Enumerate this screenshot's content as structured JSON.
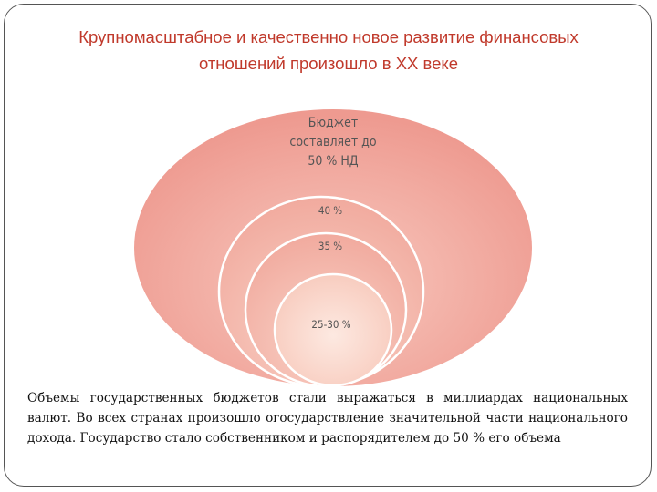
{
  "title": {
    "line1": "Крупномасштабное и качественно новое развитие финансовых",
    "line2": "отношений произошло в XX веке"
  },
  "diagram": {
    "outer": {
      "line1": "Бюджет",
      "line2": "составляет до",
      "line3": "50 % НД"
    },
    "level2": "40 %",
    "level3": "35 %",
    "level4": "25-30 %"
  },
  "body": "Объемы государственных бюджетов стали выражаться в миллиардах национальных валют. Во всех странах произошло огосударствление значительной части национального дохода. Государство стало собственником и распорядителем до 50 % его объема",
  "colors": {
    "title": "#c0392b",
    "outer_fill": "#f0a49a",
    "inner_fill": "#fbe0d6"
  }
}
